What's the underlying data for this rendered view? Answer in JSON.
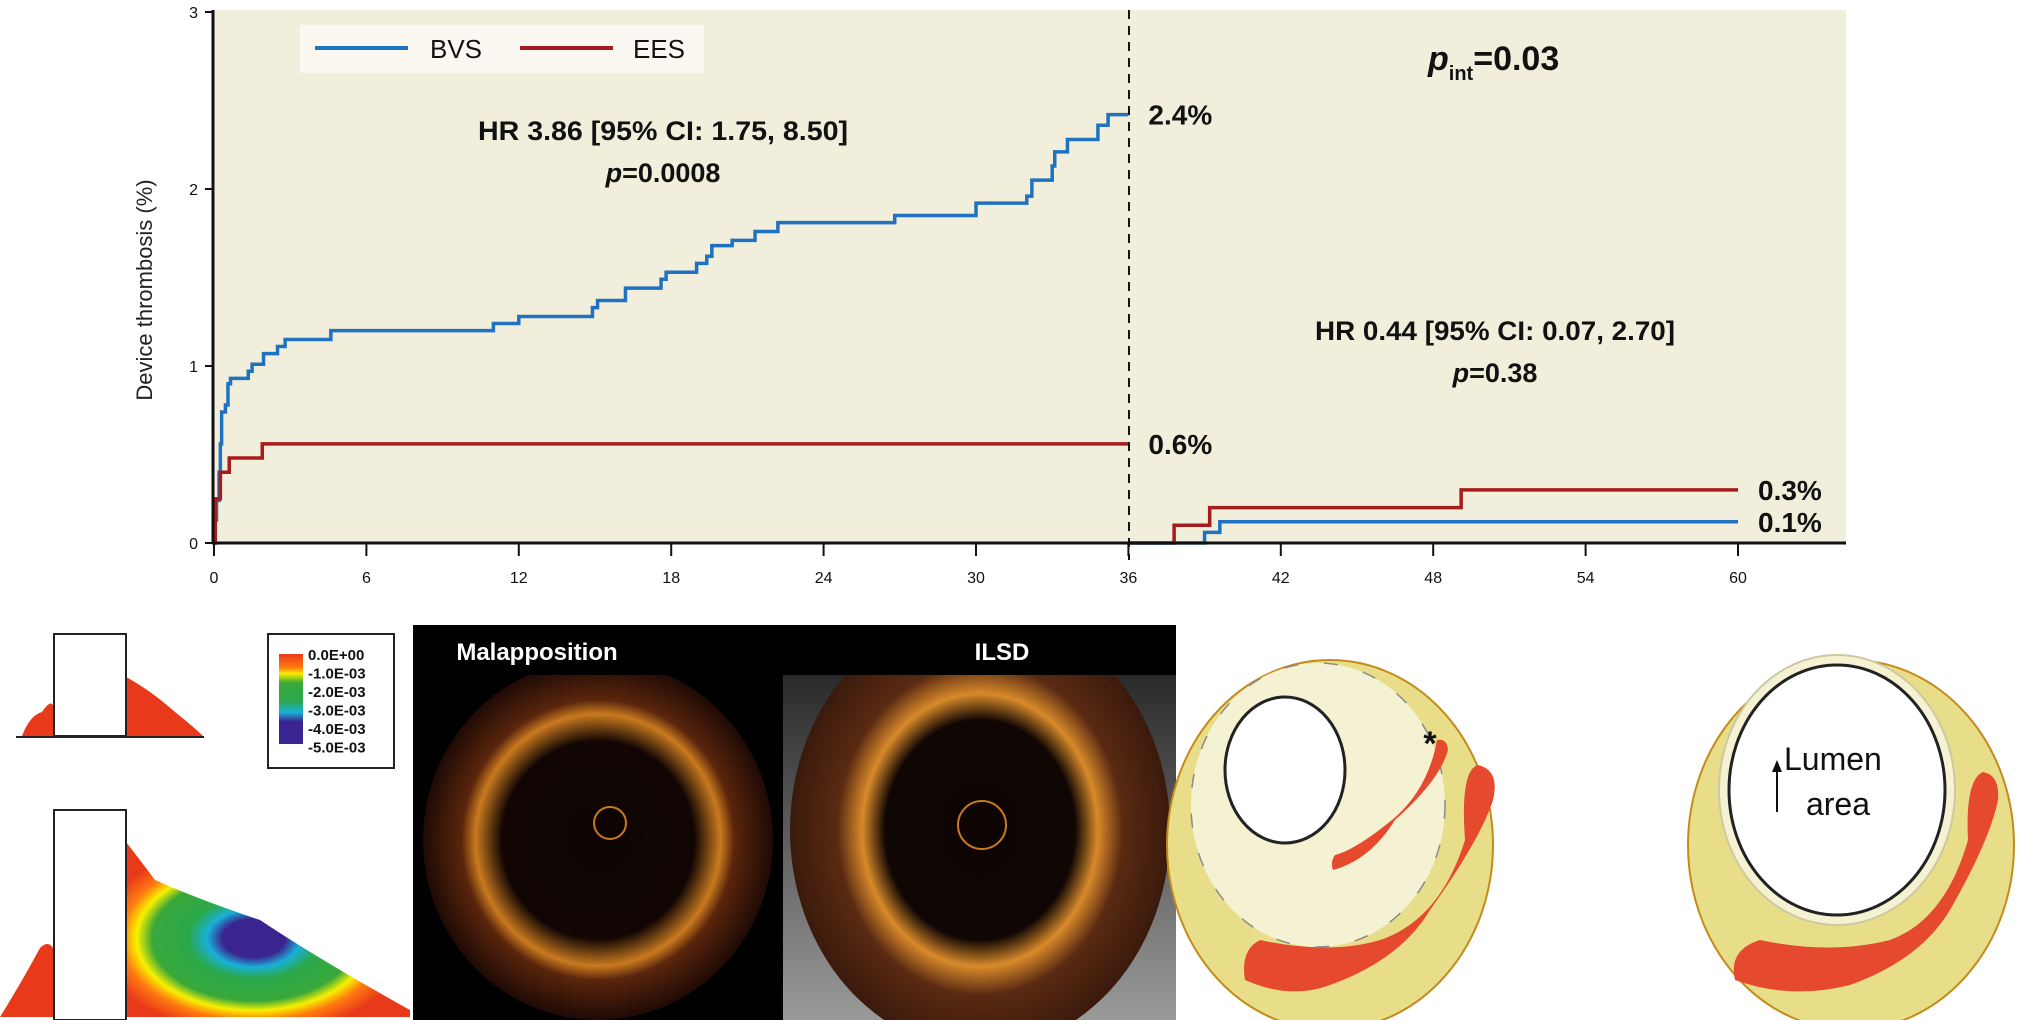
{
  "chart_data": {
    "type": "line",
    "subtype": "step (Kaplan-Meier cumulative incidence)",
    "ylabel": "Device thrombosis (%)",
    "xlabel": "",
    "xlim": [
      0,
      60
    ],
    "ylim": [
      0,
      3
    ],
    "xticks": [
      0,
      6,
      12,
      18,
      24,
      30,
      36,
      42,
      48,
      54,
      60
    ],
    "yticks": [
      0,
      1,
      2,
      3
    ],
    "landmark_month": 36,
    "legend": {
      "placement": "top-left",
      "entries": [
        "BVS",
        "EES"
      ]
    },
    "series": [
      {
        "name": "BVS",
        "color": "#1f72bf",
        "segment": "0-36 months",
        "x": [
          0,
          0.05,
          0.1,
          0.2,
          0.25,
          0.3,
          0.45,
          0.55,
          0.65,
          1.35,
          1.5,
          1.95,
          2.5,
          2.8,
          4.6,
          11,
          12,
          14.9,
          15.1,
          16.2,
          17.6,
          17.8,
          19,
          19.4,
          19.6,
          20.4,
          21.3,
          22.2,
          26.8,
          30,
          32,
          32.2,
          33,
          33.1,
          33.6,
          34.8,
          35.2,
          36
        ],
        "y": [
          0,
          0.13,
          0.24,
          0.4,
          0.56,
          0.74,
          0.78,
          0.9,
          0.93,
          0.97,
          1.01,
          1.07,
          1.11,
          1.15,
          1.2,
          1.24,
          1.28,
          1.33,
          1.37,
          1.44,
          1.49,
          1.53,
          1.58,
          1.62,
          1.68,
          1.71,
          1.76,
          1.81,
          1.85,
          1.92,
          1.96,
          2.05,
          2.13,
          2.21,
          2.28,
          2.36,
          2.42,
          2.42
        ]
      },
      {
        "name": "EES",
        "color": "#a61c1c",
        "segment": "0-36 months",
        "x": [
          0,
          0.05,
          0.25,
          0.6,
          1.9,
          36
        ],
        "y": [
          0,
          0.25,
          0.4,
          0.48,
          0.56,
          0.56
        ]
      },
      {
        "name": "EES",
        "color": "#a61c1c",
        "segment": "36-60 months",
        "x": [
          36,
          37.8,
          39.2,
          49.1,
          60
        ],
        "y": [
          0,
          0.1,
          0.2,
          0.3,
          0.3
        ]
      },
      {
        "name": "BVS",
        "color": "#1f72bf",
        "segment": "36-60 months",
        "x": [
          36,
          39,
          39.6,
          60
        ],
        "y": [
          0,
          0.06,
          0.12,
          0.12
        ]
      }
    ],
    "end_labels": [
      {
        "text": "2.4%",
        "x": 36,
        "y": 2.42
      },
      {
        "text": "0.6%",
        "x": 36,
        "y": 0.56
      },
      {
        "text": "0.3%",
        "x": 60,
        "y": 0.3
      },
      {
        "text": "0.1%",
        "x": 60,
        "y": 0.12
      }
    ],
    "annotations": {
      "early_hr": "HR 3.86 [95% CI: 1.75, 8.50]",
      "early_p_label": "p",
      "early_p_value": "=0.0008",
      "late_hr": "HR 0.44 [95% CI: 0.07, 2.70]",
      "late_p_label": "p",
      "late_p_value": "=0.38",
      "pint_label": "p",
      "pint_sub": "int",
      "pint_value": "=0.03"
    },
    "background": "#f2eedc"
  },
  "panels": {
    "colorbar_labels": [
      "0.0E+00",
      "-1.0E-03",
      "-2.0E-03",
      "-3.0E-03",
      "-4.0E-03",
      "-5.0E-03"
    ],
    "oct_titles": [
      "Malapposition",
      "ILSD"
    ],
    "asterisk": "*",
    "lumen_label_line1": "Lumen",
    "lumen_label_line2": "area"
  }
}
